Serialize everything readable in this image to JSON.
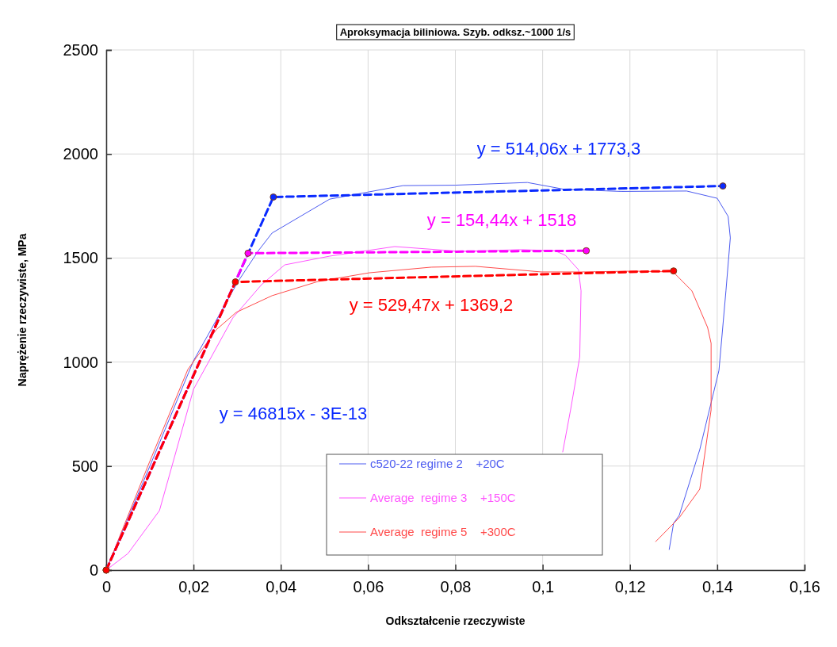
{
  "chart_data": {
    "type": "line",
    "title": "Aproksymacja biliniowa. Szyb. odksz.~1000 1/s",
    "xlabel": "Odkształcenie rzeczywiste",
    "ylabel": "Naprężenie rzeczywiste, MPa",
    "xlim": [
      0,
      0.16
    ],
    "ylim": [
      0,
      2500
    ],
    "xticks": [
      0,
      {
        "value": 0.02,
        "label": "0,02"
      },
      {
        "value": 0.04,
        "label": "0,04"
      },
      {
        "value": 0.06,
        "label": "0,06"
      },
      {
        "value": 0.08,
        "label": "0,08"
      },
      {
        "value": 0.1,
        "label": "0,1"
      },
      {
        "value": 0.12,
        "label": "0,12"
      },
      {
        "value": 0.14,
        "label": "0,14"
      },
      {
        "value": 0.16,
        "label": "0,16"
      }
    ],
    "yticks": [
      0,
      500,
      1000,
      1500,
      2000,
      2500
    ],
    "grid": true,
    "legend": "bottom",
    "series": [
      {
        "name": "c520-22 regime 2    +20C",
        "color": "#4b5af0",
        "marker": "none",
        "line_style": "solid",
        "x": [
          0,
          0.01,
          0.02,
          0.0302,
          0.0349,
          0.038,
          0.0512,
          0.068,
          0.08,
          0.0965,
          0.105,
          0.118,
          0.133,
          0.14,
          0.1425,
          0.143,
          0.142,
          0.1404,
          0.136,
          0.1313,
          0.13,
          0.129
        ],
        "values": [
          0,
          500,
          1006,
          1387,
          1536,
          1620,
          1783,
          1848,
          1850,
          1863,
          1830,
          1820,
          1822,
          1787,
          1700,
          1597,
          1342,
          960,
          579,
          263,
          225,
          99
        ]
      },
      {
        "name": "Average  regime 3    +150C",
        "color": "#ff55ff",
        "marker": "none",
        "line_style": "solid",
        "x": [
          0,
          0.005,
          0.0122,
          0.02,
          0.029,
          0.0356,
          0.0409,
          0.0512,
          0.0661,
          0.081,
          0.095,
          0.1028,
          0.1052,
          0.1082,
          0.1088,
          0.1085,
          0.1064,
          0.1046
        ],
        "values": [
          0,
          80,
          286,
          869,
          1212,
          1372,
          1467,
          1509,
          1555,
          1532,
          1540,
          1535,
          1513,
          1444,
          1342,
          1025,
          770,
          568
        ]
      },
      {
        "name": "Average  regime 5    +300C",
        "color": "#ff4a4a",
        "marker": "none",
        "line_style": "solid",
        "x": [
          0,
          0.0096,
          0.0187,
          0.0252,
          0.0298,
          0.038,
          0.0485,
          0.0603,
          0.0745,
          0.0846,
          0.0997,
          0.1088,
          0.121,
          0.1299,
          0.1342,
          0.1378,
          0.1386,
          0.1386,
          0.136,
          0.1313,
          0.1259
        ],
        "values": [
          0,
          503,
          964,
          1155,
          1239,
          1319,
          1387,
          1429,
          1456,
          1460,
          1433,
          1433,
          1437,
          1433,
          1342,
          1166,
          1090,
          770,
          389,
          252,
          137
        ]
      },
      {
        "color": "#0a2aff",
        "marker": "circle",
        "line_style": "dashed",
        "x": [
          0,
          0.0383,
          0.1413
        ],
        "values": [
          0,
          1793,
          1846
        ]
      },
      {
        "color": "#ff00ff",
        "marker": "circle",
        "line_style": "dashed",
        "x": [
          0,
          0.0325,
          0.11
        ],
        "values": [
          0,
          1523,
          1535
        ]
      },
      {
        "color": "#ff0000",
        "marker": "circle",
        "line_style": "dashed",
        "x": [
          0,
          0.0296,
          0.13
        ],
        "values": [
          0,
          1385,
          1438
        ]
      }
    ],
    "annotations": [
      "y = 514,06x + 1773,3",
      "y = 154,44x + 1518",
      "y = 529,47x + 1369,2",
      "y = 46815x - 3E-13"
    ]
  }
}
